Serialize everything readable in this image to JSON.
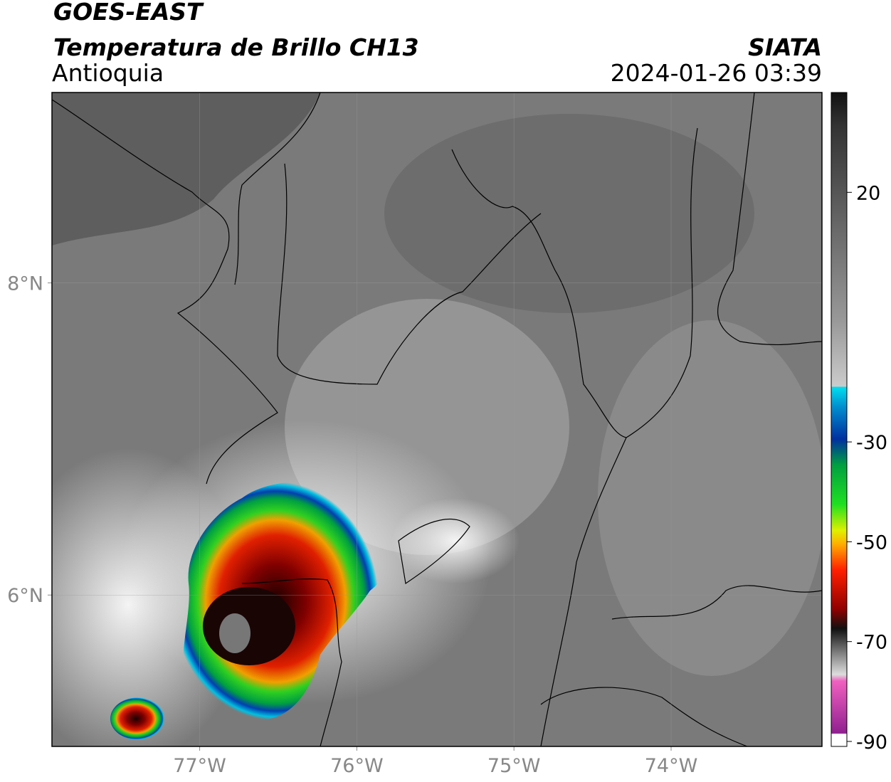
{
  "header": {
    "title": "GOES-EAST",
    "subtitle": "Temperatura de Brillo CH13",
    "region": "Antioquia",
    "agency": "SIATA",
    "datetime": "2024-01-26 03:39"
  },
  "map": {
    "xlim": [
      -77.94,
      -73.04
    ],
    "ylim": [
      5.03,
      9.22
    ],
    "xticks": [
      {
        "value": -77,
        "label": "77°W"
      },
      {
        "value": -76,
        "label": "76°W"
      },
      {
        "value": -75,
        "label": "75°W"
      },
      {
        "value": -74,
        "label": "74°W"
      }
    ],
    "yticks": [
      {
        "value": 8,
        "label": "8°N"
      },
      {
        "value": 6,
        "label": "6°N"
      }
    ]
  },
  "colorbar": {
    "lim": [
      -91,
      40
    ],
    "ticks": [
      20,
      -30,
      -50,
      -70,
      -90
    ]
  }
}
